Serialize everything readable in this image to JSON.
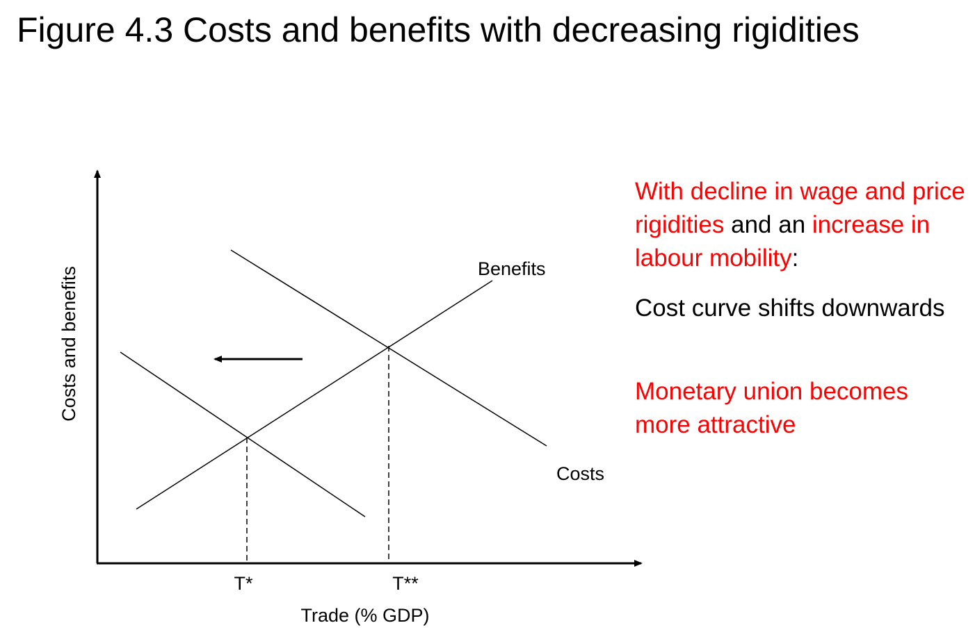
{
  "title": "Figure 4.3 Costs and benefits with decreasing rigidities",
  "diagram": {
    "y_axis_label": "Costs and benefits",
    "x_axis_label": "Trade (% GDP)",
    "curve_labels": {
      "benefits": "Benefits",
      "costs": "Costs"
    },
    "x_ticks": {
      "t_star": "T*",
      "t_double_star": "T**"
    },
    "shift_direction": "left",
    "colors": {
      "lines": "#000000"
    }
  },
  "side_text": {
    "para1": {
      "part1": "With decline in wage and price rigidities",
      "part2": " and an ",
      "part3": "increase in labour mobility",
      "part4": ":"
    },
    "para2": "Cost curve shifts downwards",
    "para3": "Monetary union becomes more attractive",
    "colors": {
      "highlight": "#ff0000",
      "normal": "#000000"
    }
  }
}
